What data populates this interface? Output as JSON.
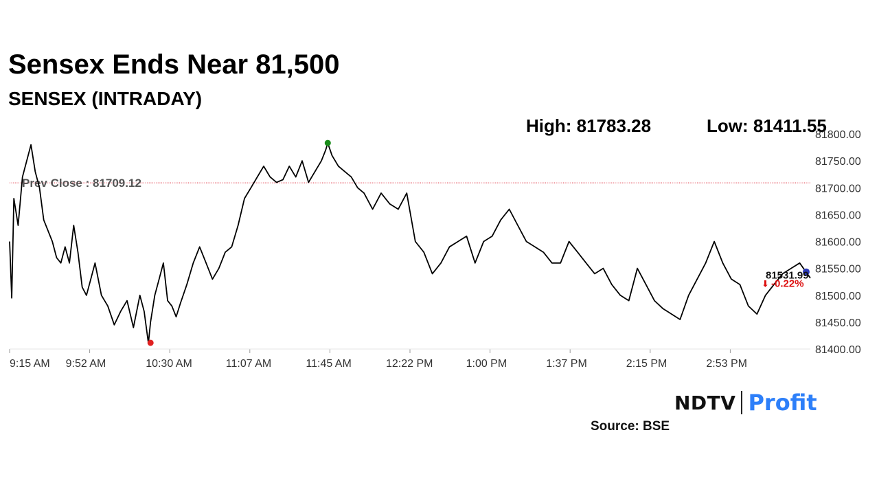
{
  "chart_data": {
    "type": "line",
    "title": "Sensex Ends Near 81,500",
    "subtitle": "SENSEX (INTRADAY)",
    "high_text": "High: 81783.28",
    "low_text": "Low: 81411.55",
    "high": 81783.28,
    "low": 81411.55,
    "prev_close": 81709.12,
    "prev_close_text": "Prev Close : 81709.12",
    "last_value": 81531.99,
    "last_text": "81531.99",
    "change_text": "-0.22%",
    "change_arrow": "⬇",
    "ylim": [
      81400,
      81800
    ],
    "yticks": [
      "81400.00",
      "81450.00",
      "81500.00",
      "81550.00",
      "81600.00",
      "81650.00",
      "81700.00",
      "81750.00",
      "81800.00"
    ],
    "xticks": [
      "9:15 AM",
      "9:52 AM",
      "10:30 AM",
      "11:07 AM",
      "11:45 AM",
      "12:22 PM",
      "1:00 PM",
      "1:37 PM",
      "2:15 PM",
      "2:53 PM"
    ],
    "x_start_min": 0,
    "x_end_min": 375,
    "high_time_min": 149,
    "low_time_min": 66,
    "series": [
      {
        "name": "SENSEX",
        "x_minutes": [
          0,
          1,
          2,
          4,
          6,
          8,
          10,
          12,
          14,
          16,
          18,
          20,
          22,
          24,
          26,
          28,
          30,
          32,
          34,
          36,
          38,
          40,
          43,
          46,
          49,
          52,
          55,
          58,
          61,
          63,
          65,
          66,
          68,
          70,
          72,
          74,
          76,
          78,
          80,
          83,
          86,
          89,
          92,
          95,
          98,
          101,
          104,
          107,
          110,
          113,
          116,
          119,
          122,
          125,
          128,
          131,
          134,
          137,
          140,
          143,
          146,
          148,
          149,
          151,
          154,
          157,
          160,
          163,
          166,
          170,
          174,
          178,
          182,
          186,
          190,
          194,
          198,
          202,
          206,
          210,
          214,
          218,
          222,
          226,
          230,
          234,
          238,
          242,
          246,
          250,
          254,
          258,
          262,
          266,
          270,
          274,
          278,
          282,
          286,
          290,
          294,
          298,
          302,
          306,
          310,
          314,
          318,
          322,
          326,
          330,
          334,
          338,
          342,
          346,
          350,
          354,
          358,
          362,
          366,
          370,
          375
        ],
        "values": [
          81600,
          81495,
          81680,
          81630,
          81720,
          81750,
          81780,
          81730,
          81700,
          81640,
          81620,
          81600,
          81570,
          81560,
          81590,
          81560,
          81630,
          81580,
          81515,
          81500,
          81530,
          81560,
          81500,
          81480,
          81445,
          81470,
          81490,
          81440,
          81500,
          81470,
          81411,
          81450,
          81500,
          81530,
          81560,
          81490,
          81480,
          81460,
          81485,
          81520,
          81560,
          81590,
          81560,
          81530,
          81550,
          81580,
          81590,
          81630,
          81680,
          81700,
          81720,
          81740,
          81720,
          81710,
          81715,
          81740,
          81720,
          81750,
          81710,
          81730,
          81750,
          81770,
          81783,
          81760,
          81740,
          81730,
          81720,
          81700,
          81690,
          81660,
          81690,
          81670,
          81660,
          81690,
          81600,
          81580,
          81540,
          81560,
          81590,
          81600,
          81610,
          81560,
          81600,
          81610,
          81640,
          81660,
          81630,
          81600,
          81590,
          81580,
          81560,
          81560,
          81600,
          81580,
          81560,
          81540,
          81550,
          81520,
          81500,
          81490,
          81550,
          81520,
          81490,
          81475,
          81465,
          81455,
          81500,
          81530,
          81560,
          81600,
          81560,
          81530,
          81520,
          81480,
          81465,
          81500,
          81520,
          81540,
          81550,
          81560,
          81532
        ]
      }
    ],
    "gap_ranges": [
      [
        354,
        355
      ]
    ],
    "source": "Source: BSE"
  },
  "branding": {
    "logo_ndtv": "NDTV",
    "logo_profit": "Profit"
  }
}
